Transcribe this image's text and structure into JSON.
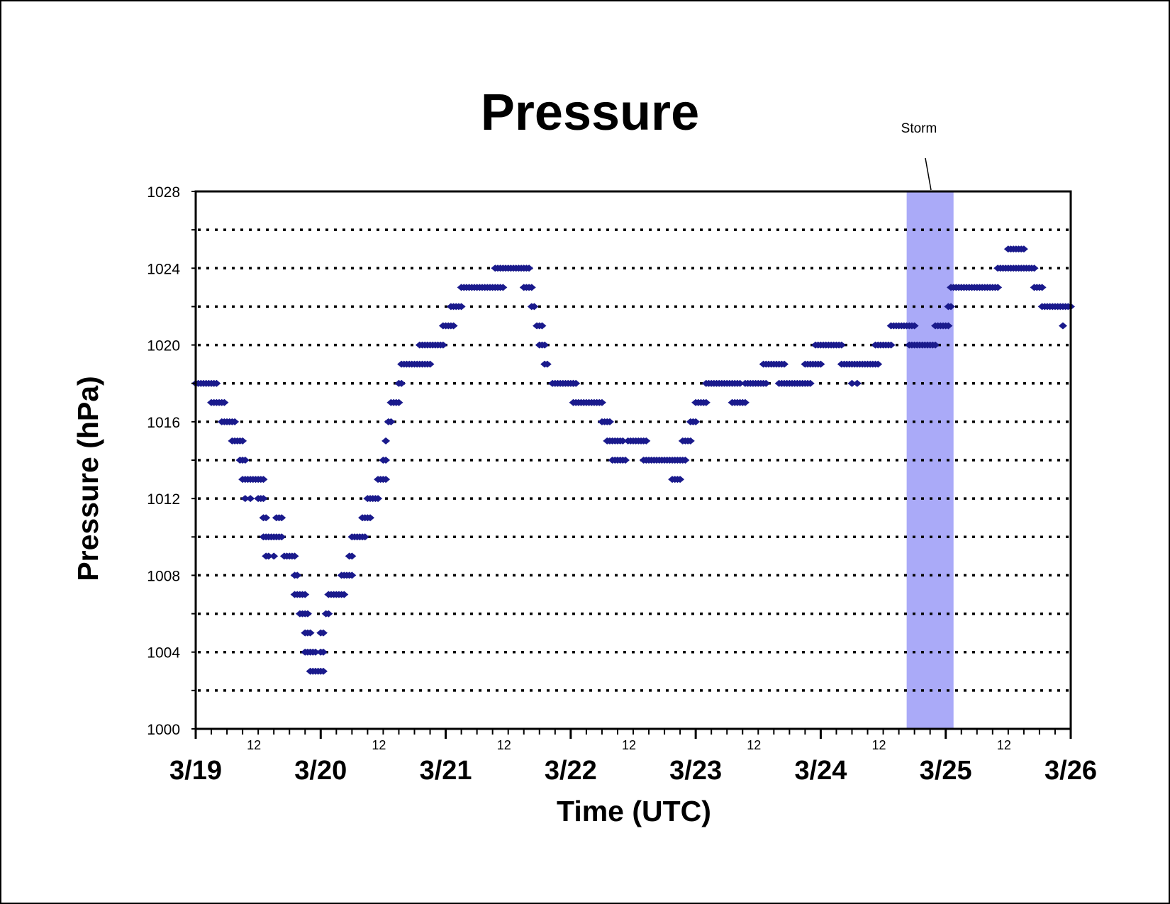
{
  "chart_data": {
    "type": "scatter",
    "title": "Pressure",
    "xlabel": "Time (UTC)",
    "ylabel": "Pressure (hPa)",
    "ylim": [
      1000,
      1028
    ],
    "xlim": [
      "3/19 00:00",
      "3/26 00:00"
    ],
    "y_tick_labels": [
      "1000",
      "1004",
      "1008",
      "1012",
      "1016",
      "1020",
      "1024",
      "1028"
    ],
    "y_ticks": [
      1000,
      1004,
      1008,
      1012,
      1016,
      1020,
      1024,
      1028
    ],
    "y_gridlines": [
      1002,
      1004,
      1006,
      1008,
      1010,
      1012,
      1014,
      1016,
      1018,
      1020,
      1022,
      1024,
      1026
    ],
    "grid": "horizontal dotted",
    "x_day_labels": [
      "3/19",
      "3/20",
      "3/21",
      "3/22",
      "3/23",
      "3/24",
      "3/25",
      "3/26"
    ],
    "x_midday_label": "12",
    "marker_color": "#1a1a8c",
    "storm": {
      "label": "Storm",
      "start_hours": 136.5,
      "end_hours": 145.5,
      "color": "#aaaaf8"
    },
    "series": [
      {
        "runs": [
          [
            0,
            4,
            1018
          ],
          [
            3,
            5.5,
            1017
          ],
          [
            5,
            7.5,
            1016
          ],
          [
            7,
            9,
            1015
          ],
          [
            8.5,
            9.5,
            1014
          ],
          [
            9,
            13,
            1013
          ],
          [
            9.5,
            9.5,
            1012
          ],
          [
            10.5,
            10.5,
            1012
          ],
          [
            12,
            13,
            1012
          ],
          [
            13,
            13.5,
            1011
          ],
          [
            13,
            16.5,
            1010
          ],
          [
            13.5,
            14,
            1009
          ],
          [
            15,
            15,
            1009
          ],
          [
            15.5,
            16.5,
            1011
          ],
          [
            17,
            19,
            1009
          ],
          [
            19,
            19.5,
            1008
          ],
          [
            19,
            21,
            1007
          ],
          [
            20,
            21.5,
            1006
          ],
          [
            21,
            22,
            1005
          ],
          [
            21,
            23,
            1004
          ],
          [
            22,
            24.5,
            1003
          ],
          [
            24,
            24.5,
            1004
          ],
          [
            24,
            24.5,
            1005
          ],
          [
            25,
            25.5,
            1006
          ],
          [
            25.5,
            28.5,
            1007
          ],
          [
            28,
            30,
            1008
          ],
          [
            29.5,
            30,
            1009
          ],
          [
            30,
            32.5,
            1010
          ],
          [
            32,
            33.5,
            1011
          ],
          [
            33,
            35,
            1012
          ],
          [
            35,
            36.5,
            1013
          ],
          [
            36,
            36.5,
            1014
          ],
          [
            36.5,
            36.5,
            1015
          ],
          [
            37,
            37.5,
            1016
          ],
          [
            37.5,
            39,
            1017
          ],
          [
            39,
            39.5,
            1018
          ],
          [
            39.5,
            45,
            1019
          ],
          [
            43,
            47.5,
            1020
          ],
          [
            47.5,
            49.5,
            1021
          ],
          [
            49,
            51,
            1022
          ],
          [
            51,
            59,
            1023
          ],
          [
            57.5,
            64,
            1024
          ],
          [
            63,
            64.5,
            1023
          ],
          [
            64.5,
            65,
            1022
          ],
          [
            65.5,
            66.5,
            1021
          ],
          [
            66,
            67,
            1020
          ],
          [
            67,
            67.5,
            1019
          ],
          [
            68.5,
            73,
            1018
          ],
          [
            72.5,
            72.5,
            1018
          ],
          [
            72.5,
            78,
            1017
          ],
          [
            78,
            79.5,
            1016
          ],
          [
            79,
            82,
            1015
          ],
          [
            80,
            82.5,
            1014
          ],
          [
            83,
            86.5,
            1015
          ],
          [
            86,
            94,
            1014
          ],
          [
            91.5,
            93,
            1013
          ],
          [
            93.5,
            95,
            1015
          ],
          [
            95,
            96,
            1016
          ],
          [
            96,
            98,
            1017
          ],
          [
            98,
            104.5,
            1018
          ],
          [
            103,
            105.5,
            1017
          ],
          [
            105.5,
            109.5,
            1018
          ],
          [
            109,
            113,
            1019
          ],
          [
            112,
            118,
            1018
          ],
          [
            117,
            119.5,
            1019
          ],
          [
            119,
            124,
            1020
          ],
          [
            120,
            120,
            1019
          ],
          [
            124,
            131,
            1019
          ],
          [
            126,
            126,
            1018
          ],
          [
            127,
            127,
            1018
          ],
          [
            130.5,
            133.5,
            1020
          ],
          [
            133.5,
            138,
            1021
          ],
          [
            137,
            142,
            1020
          ],
          [
            142,
            144.5,
            1021
          ],
          [
            144.5,
            145,
            1022
          ],
          [
            145,
            154,
            1023
          ],
          [
            154,
            156,
            1024
          ],
          [
            156,
            159,
            1025
          ],
          [
            156.5,
            161,
            1024
          ],
          [
            161,
            162.5,
            1023
          ],
          [
            162.5,
            168,
            1022
          ],
          [
            166.5,
            166.5,
            1021
          ]
        ]
      }
    ]
  }
}
